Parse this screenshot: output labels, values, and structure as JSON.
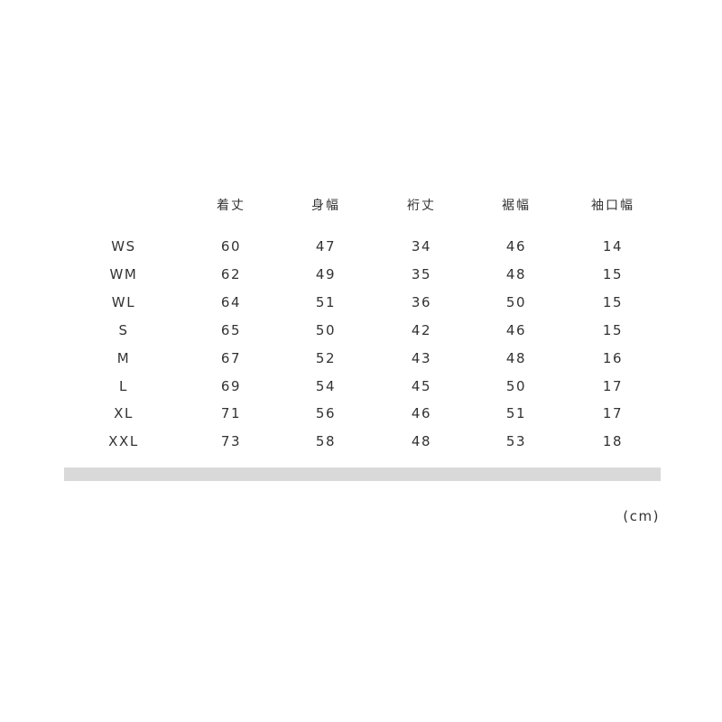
{
  "table": {
    "headers": [
      "",
      "着丈",
      "身幅",
      "裄丈",
      "裾幅",
      "袖口幅"
    ],
    "rows": [
      [
        "WS",
        "60",
        "47",
        "34",
        "46",
        "14"
      ],
      [
        "WM",
        "62",
        "49",
        "35",
        "48",
        "15"
      ],
      [
        "WL",
        "64",
        "51",
        "36",
        "50",
        "15"
      ],
      [
        "S",
        "65",
        "50",
        "42",
        "46",
        "15"
      ],
      [
        "M",
        "67",
        "52",
        "43",
        "48",
        "16"
      ],
      [
        "L",
        "69",
        "54",
        "45",
        "50",
        "17"
      ],
      [
        "XL",
        "71",
        "56",
        "46",
        "51",
        "17"
      ],
      [
        "XXL",
        "73",
        "58",
        "48",
        "53",
        "18"
      ]
    ]
  },
  "unit": "(cm)",
  "colors": {
    "text": "#333333",
    "bar": "#d9d9d9"
  }
}
